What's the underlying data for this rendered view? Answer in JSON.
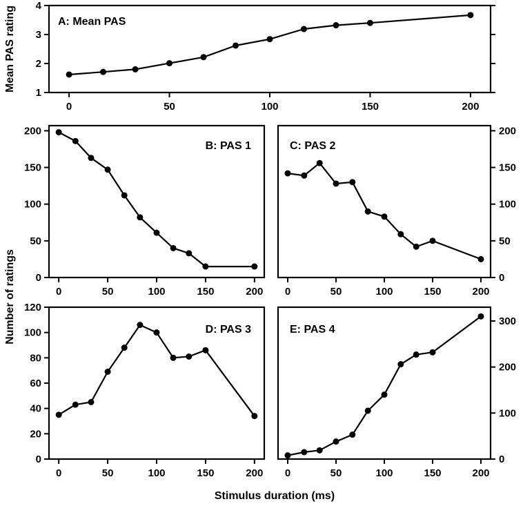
{
  "figure": {
    "shared_xlabel": "Stimulus duration (ms)",
    "shared_ylabel": "Number of ratings"
  },
  "chart_data": [
    {
      "id": "A",
      "type": "line",
      "title": "A: Mean PAS",
      "xlabel": "",
      "ylabel": "Mean PAS rating",
      "x": [
        0,
        17,
        33,
        50,
        67,
        83,
        100,
        117,
        133,
        150,
        200
      ],
      "values": [
        1.62,
        1.71,
        1.8,
        2.01,
        2.22,
        2.62,
        2.84,
        3.19,
        3.32,
        3.4,
        3.67
      ],
      "xlim": [
        -10,
        210
      ],
      "ylim": [
        1,
        4
      ],
      "xticks": [
        0,
        50,
        100,
        150,
        200
      ],
      "yticks": [
        1,
        2,
        3,
        4
      ],
      "y_axis_side": "left",
      "grid": false
    },
    {
      "id": "B",
      "type": "line",
      "title": "B: PAS 1",
      "xlabel": "",
      "ylabel": "",
      "x": [
        0,
        17,
        33,
        50,
        67,
        83,
        100,
        117,
        133,
        150,
        200
      ],
      "values": [
        198,
        186,
        163,
        147,
        112,
        82,
        61,
        40,
        33,
        15,
        15
      ],
      "xlim": [
        -10,
        210
      ],
      "ylim": [
        0,
        207
      ],
      "xticks": [
        0,
        50,
        100,
        150,
        200
      ],
      "yticks": [
        0,
        50,
        100,
        150,
        200
      ],
      "y_axis_side": "left",
      "grid": false
    },
    {
      "id": "C",
      "type": "line",
      "title": "C: PAS 2",
      "xlabel": "",
      "ylabel": "",
      "x": [
        0,
        17,
        33,
        50,
        67,
        83,
        100,
        117,
        133,
        150,
        200
      ],
      "values": [
        142,
        139,
        156,
        128,
        130,
        90,
        83,
        59,
        42,
        50,
        25
      ],
      "xlim": [
        -10,
        210
      ],
      "ylim": [
        0,
        207
      ],
      "xticks": [
        0,
        50,
        100,
        150,
        200
      ],
      "yticks": [
        0,
        50,
        100,
        150,
        200
      ],
      "y_axis_side": "right",
      "grid": false
    },
    {
      "id": "D",
      "type": "line",
      "title": "D: PAS 3",
      "xlabel": "",
      "ylabel": "",
      "x": [
        0,
        17,
        33,
        50,
        67,
        83,
        100,
        117,
        133,
        150,
        200
      ],
      "values": [
        35,
        43,
        45,
        69,
        88,
        106,
        100,
        80,
        81,
        86,
        34
      ],
      "xlim": [
        -10,
        210
      ],
      "ylim": [
        0,
        120
      ],
      "xticks": [
        0,
        50,
        100,
        150,
        200
      ],
      "yticks": [
        0,
        20,
        40,
        60,
        80,
        100,
        120
      ],
      "y_axis_side": "left",
      "grid": false
    },
    {
      "id": "E",
      "type": "line",
      "title": "E: PAS 4",
      "xlabel": "",
      "ylabel": "",
      "x": [
        0,
        17,
        33,
        50,
        67,
        83,
        100,
        117,
        133,
        150,
        200
      ],
      "values": [
        8,
        15,
        19,
        38,
        53,
        105,
        140,
        206,
        227,
        232,
        310
      ],
      "xlim": [
        -10,
        210
      ],
      "ylim": [
        0,
        330
      ],
      "xticks": [
        0,
        50,
        100,
        150,
        200
      ],
      "yticks": [
        0,
        100,
        200,
        300
      ],
      "y_axis_side": "right",
      "grid": false
    }
  ]
}
